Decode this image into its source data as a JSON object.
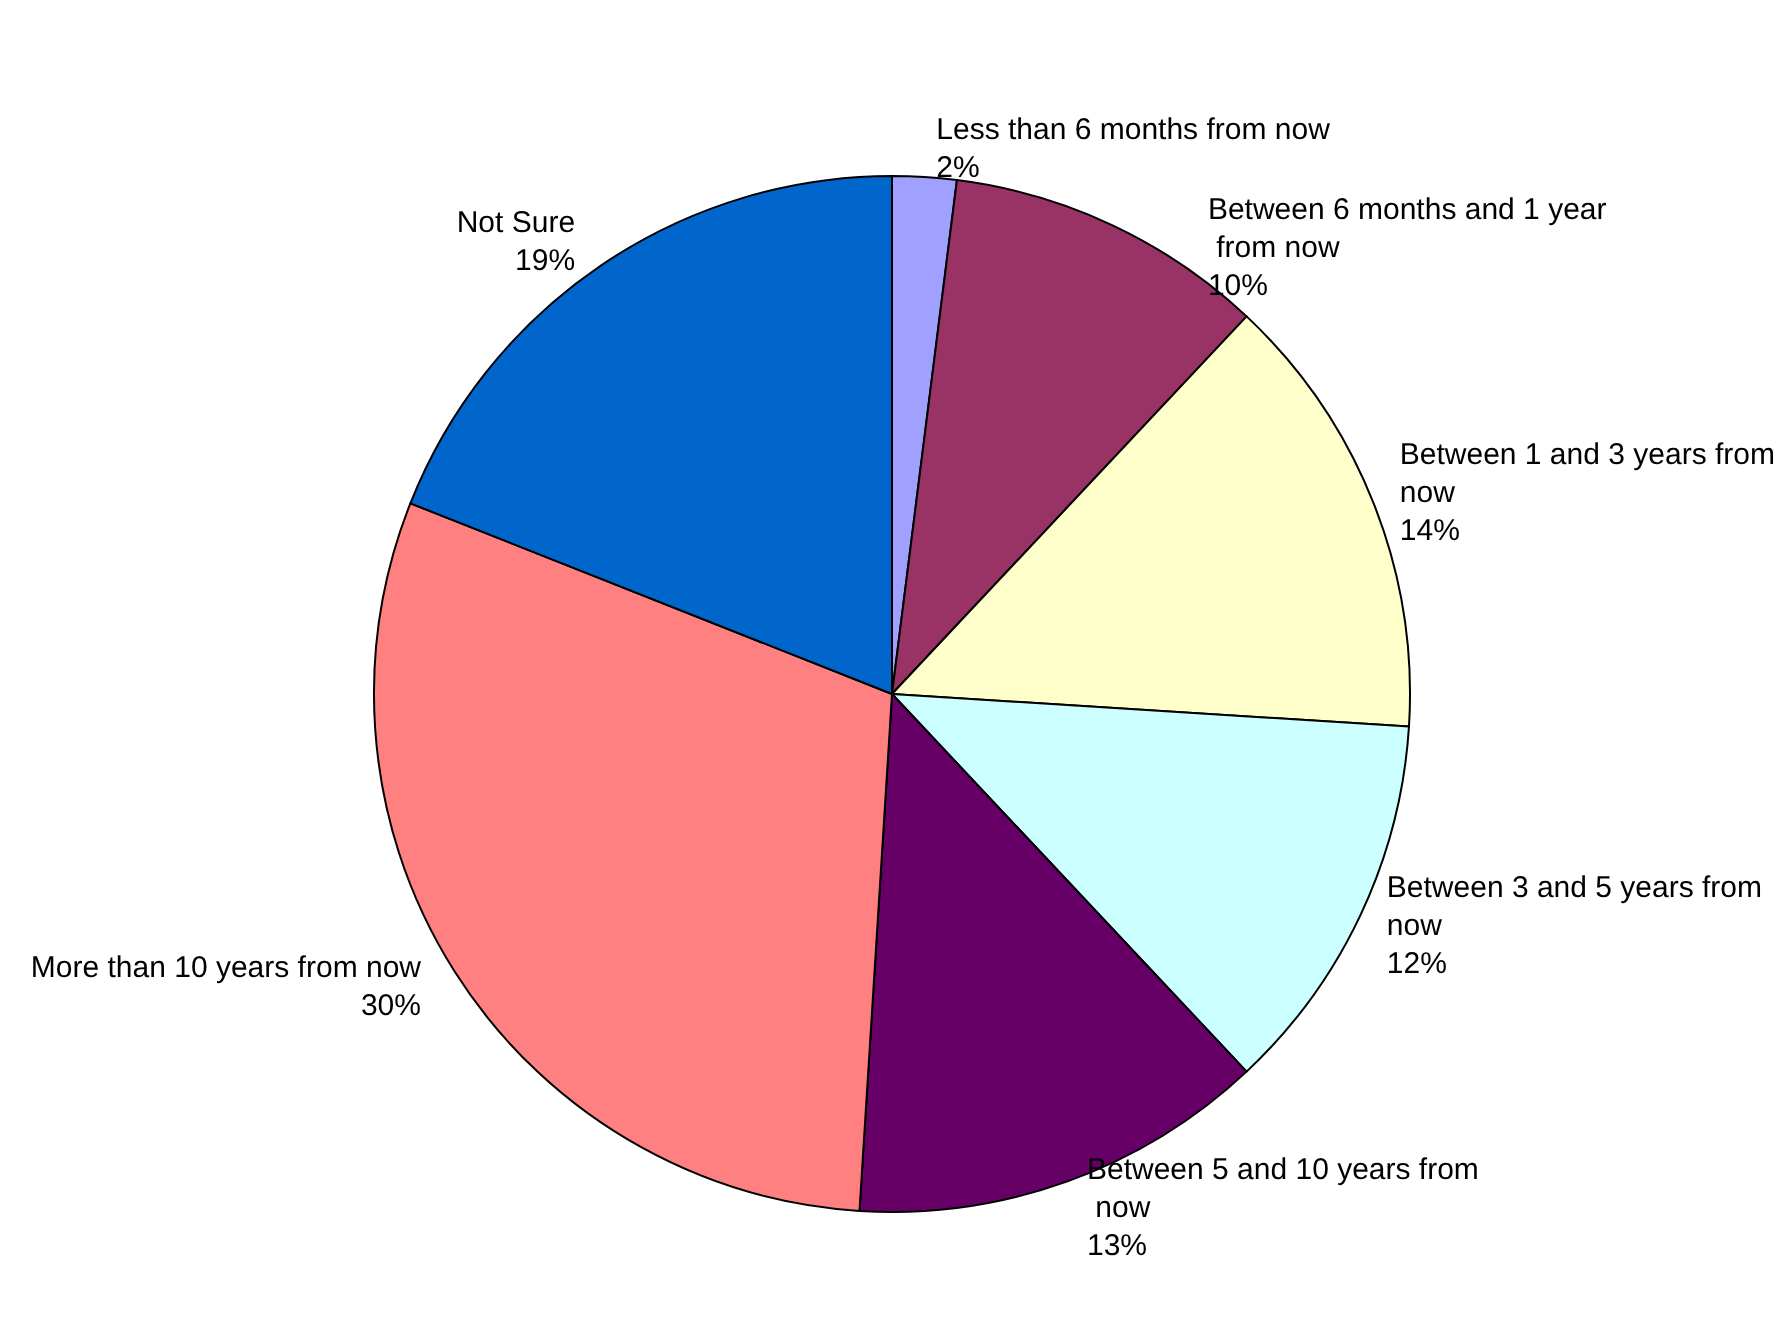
{
  "chart_data": {
    "type": "pie",
    "categories": [
      "Less than 6 months from now",
      "Between 6 months and 1 year from now",
      "Between 1 and 3 years from now",
      "Between 3 and 5 years from now",
      "Between 5 and 10 years from now",
      "More than 10 years from now",
      "Not Sure"
    ],
    "values": [
      2,
      10,
      14,
      12,
      13,
      30,
      19
    ],
    "value_labels": [
      "2%",
      "10%",
      "14%",
      "12%",
      "13%",
      "30%",
      "19%"
    ],
    "colors": [
      "#a0a0ff",
      "#993366",
      "#ffffcc",
      "#ccffff",
      "#660066",
      "#ff8080",
      "#0066cc"
    ],
    "legend": false
  }
}
